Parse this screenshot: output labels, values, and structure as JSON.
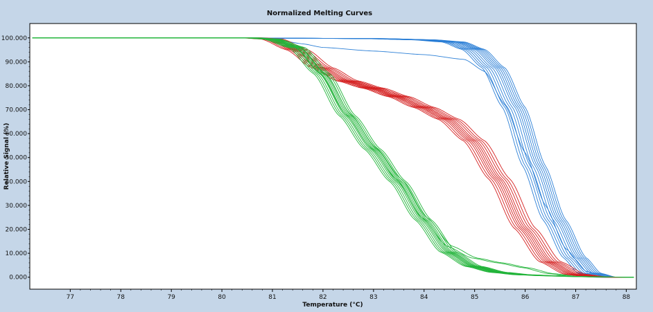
{
  "colors": {
    "background": "#c5d6e8",
    "plot_background": "#ffffff",
    "blue": "#2b7fd6",
    "red": "#d41f1f",
    "green": "#22b43a"
  },
  "chart_data": {
    "type": "line",
    "title": "Normalized Melting Curves",
    "xlabel": "Temperature (°C)",
    "ylabel": "Relative Signal (%)",
    "xlim": [
      76.2,
      88.2
    ],
    "ylim": [
      -5,
      106
    ],
    "x_ticks": [
      77,
      78,
      79,
      80,
      81,
      82,
      83,
      84,
      85,
      86,
      87,
      88
    ],
    "y_ticks": [
      0,
      10,
      20,
      30,
      40,
      50,
      60,
      70,
      80,
      90,
      100
    ],
    "y_tick_labels": [
      "0.000",
      "10.000",
      "20.000",
      "30.000",
      "40.000",
      "50.000",
      "60.000",
      "70.000",
      "80.000",
      "90.000",
      "100.000"
    ],
    "groups": [
      {
        "name": "blue",
        "color": "#2b7fd6",
        "x": [
          76.3,
          80.5,
          81.0,
          82.0,
          83.0,
          84.0,
          84.6,
          85.0,
          85.4,
          85.8,
          86.2,
          86.6,
          87.0,
          87.3,
          87.6,
          88.2
        ],
        "values": [
          100,
          100,
          99.9,
          99.8,
          99.7,
          99.2,
          98.3,
          95.2,
          87.5,
          71.0,
          46.5,
          24.0,
          8.2,
          1.6,
          0,
          0
        ],
        "offsets": [
          -0.25,
          -0.2,
          -0.15,
          -0.1,
          -0.05,
          0,
          0.04,
          0.08,
          0.12,
          0.16,
          0.2
        ]
      },
      {
        "name": "blue-outlier",
        "color": "#2b7fd6",
        "x": [
          76.3,
          80.5,
          81.0,
          81.6,
          82.0,
          83.0,
          84.0,
          84.8,
          85.2,
          85.6,
          86.0,
          86.4,
          86.8,
          87.2,
          87.6,
          88.2
        ],
        "values": [
          100,
          100,
          99.6,
          97.5,
          96.0,
          94.5,
          93.0,
          91.0,
          86.0,
          72.0,
          52.0,
          30.0,
          12.0,
          2.5,
          0,
          0
        ],
        "offsets": [
          0
        ]
      },
      {
        "name": "red",
        "color": "#d41f1f",
        "x": [
          76.3,
          80.6,
          81.0,
          81.5,
          82.0,
          82.5,
          83.0,
          83.5,
          84.0,
          84.5,
          85.0,
          85.5,
          86.0,
          86.5,
          87.0,
          87.4,
          87.7,
          88.2
        ],
        "values": [
          100,
          100,
          99.5,
          95.0,
          87.5,
          82.0,
          79.0,
          75.5,
          71.0,
          66.0,
          57.0,
          41.0,
          20.5,
          6.5,
          1.2,
          0.2,
          0,
          0
        ],
        "offsets": [
          -0.22,
          -0.17,
          -0.12,
          -0.08,
          -0.04,
          0,
          0.04,
          0.09,
          0.14,
          0.2
        ]
      },
      {
        "name": "green",
        "color": "#22b43a",
        "x": [
          76.3,
          80.6,
          81.0,
          81.5,
          82.0,
          82.5,
          83.0,
          83.5,
          84.0,
          84.5,
          85.0,
          85.5,
          86.0,
          86.5,
          87.0,
          87.5,
          88.2
        ],
        "values": [
          100,
          100,
          99.5,
          96.0,
          85.0,
          67.5,
          53.5,
          40.0,
          24.0,
          10.5,
          4.5,
          2.0,
          1.0,
          0.6,
          0.3,
          0.1,
          0
        ],
        "offsets": [
          -0.18,
          -0.14,
          -0.1,
          -0.06,
          -0.03,
          0,
          0.03,
          0.06,
          0.1,
          0.14
        ]
      },
      {
        "name": "green-tail",
        "color": "#22b43a",
        "x": [
          76.3,
          80.6,
          81.0,
          81.5,
          82.0,
          82.5,
          83.0,
          83.5,
          84.0,
          84.5,
          85.0,
          85.5,
          86.0,
          86.5,
          87.0,
          87.5,
          88.2
        ],
        "values": [
          100,
          100,
          99.5,
          96.0,
          85.0,
          68.0,
          54.0,
          41.0,
          25.0,
          13.0,
          8.0,
          6.0,
          4.0,
          1.5,
          0.3,
          0.1,
          0
        ],
        "offsets": [
          -0.05,
          0.05
        ]
      }
    ]
  }
}
